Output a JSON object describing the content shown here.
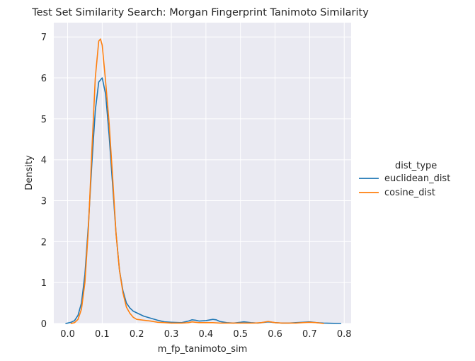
{
  "chart_data": {
    "type": "line",
    "title": "Test Set Similarity Search: Morgan Fingerprint Tanimoto Similarity",
    "xlabel": "m_fp_tanimoto_sim",
    "ylabel": "Density",
    "xlim": [
      -0.04,
      0.82
    ],
    "ylim": [
      0,
      7.35
    ],
    "xticks": [
      0.0,
      0.1,
      0.2,
      0.3,
      0.4,
      0.5,
      0.6,
      0.7,
      0.8
    ],
    "xtick_labels": [
      "0.0",
      "0.1",
      "0.2",
      "0.3",
      "0.4",
      "0.5",
      "0.6",
      "0.7",
      "0.8"
    ],
    "yticks": [
      0,
      1,
      2,
      3,
      4,
      5,
      6,
      7
    ],
    "ytick_labels": [
      "0",
      "1",
      "2",
      "3",
      "4",
      "5",
      "6",
      "7"
    ],
    "grid": true,
    "legend_title": "dist_type",
    "legend_position": "right",
    "background_color": "#eaeaf2",
    "series": [
      {
        "name": "euclidean_dist",
        "color": "#1f77b4",
        "x": [
          -0.005,
          0.0,
          0.01,
          0.02,
          0.03,
          0.04,
          0.05,
          0.06,
          0.07,
          0.08,
          0.09,
          0.1,
          0.11,
          0.12,
          0.13,
          0.14,
          0.15,
          0.16,
          0.17,
          0.18,
          0.19,
          0.2,
          0.22,
          0.24,
          0.26,
          0.28,
          0.3,
          0.33,
          0.35,
          0.36,
          0.37,
          0.38,
          0.4,
          0.42,
          0.43,
          0.44,
          0.46,
          0.48,
          0.5,
          0.51,
          0.53,
          0.55,
          0.57,
          0.58,
          0.6,
          0.62,
          0.64,
          0.66,
          0.68,
          0.7,
          0.72,
          0.74,
          0.76,
          0.79
        ],
        "y": [
          0.0,
          0.01,
          0.03,
          0.07,
          0.2,
          0.5,
          1.2,
          2.4,
          3.9,
          5.2,
          5.9,
          6.0,
          5.6,
          4.6,
          3.4,
          2.2,
          1.3,
          0.8,
          0.5,
          0.38,
          0.3,
          0.26,
          0.18,
          0.13,
          0.08,
          0.04,
          0.03,
          0.02,
          0.06,
          0.09,
          0.08,
          0.06,
          0.07,
          0.1,
          0.09,
          0.05,
          0.02,
          0.01,
          0.03,
          0.04,
          0.02,
          0.01,
          0.03,
          0.04,
          0.02,
          0.01,
          0.01,
          0.02,
          0.03,
          0.04,
          0.02,
          0.01,
          0.005,
          0.0
        ]
      },
      {
        "name": "cosine_dist",
        "color": "#ff7f0e",
        "x": [
          0.01,
          0.02,
          0.03,
          0.04,
          0.05,
          0.06,
          0.07,
          0.08,
          0.09,
          0.095,
          0.1,
          0.11,
          0.12,
          0.13,
          0.14,
          0.15,
          0.16,
          0.17,
          0.18,
          0.19,
          0.2,
          0.22,
          0.24,
          0.26,
          0.28,
          0.3,
          0.33,
          0.35,
          0.36,
          0.37,
          0.38,
          0.4,
          0.42,
          0.44,
          0.46,
          0.48,
          0.5,
          0.52,
          0.54,
          0.56,
          0.58,
          0.6,
          0.62,
          0.64,
          0.66,
          0.68,
          0.7,
          0.72,
          0.74
        ],
        "y": [
          0.0,
          0.02,
          0.1,
          0.35,
          1.0,
          2.3,
          4.2,
          6.0,
          6.9,
          6.95,
          6.8,
          5.9,
          4.9,
          3.6,
          2.2,
          1.3,
          0.75,
          0.4,
          0.25,
          0.15,
          0.1,
          0.08,
          0.06,
          0.03,
          0.02,
          0.01,
          0.01,
          0.02,
          0.04,
          0.03,
          0.02,
          0.02,
          0.02,
          0.01,
          0.01,
          0.01,
          0.01,
          0.01,
          0.01,
          0.02,
          0.05,
          0.02,
          0.01,
          0.01,
          0.01,
          0.02,
          0.03,
          0.02,
          0.0
        ]
      }
    ]
  }
}
